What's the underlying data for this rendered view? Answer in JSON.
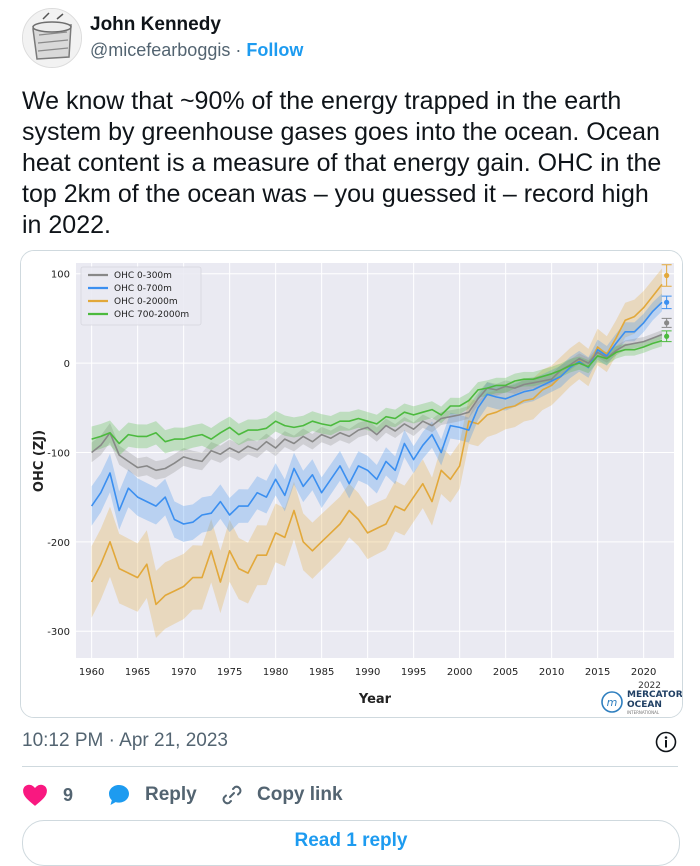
{
  "author": {
    "name": "John Kennedy",
    "handle": "@micefearboggis",
    "separator": " · ",
    "follow_label": "Follow"
  },
  "tweet": {
    "text": "We know that ~90% of the energy trapped in the earth system by greenhouse gases goes into the ocean. Ocean heat content is a measure of that energy gain. OHC in the top 2km of the ocean was – you guessed it – record high in 2022."
  },
  "footer": {
    "timestamp": "10:12 PM · Apr 21, 2023"
  },
  "actions": {
    "like_count": "9",
    "reply_label": "Reply",
    "copy_link_label": "Copy link",
    "read_reply_label": "Read 1 reply"
  },
  "colors": {
    "like": "#f91880",
    "reply": "#1d9bf0",
    "accent": "#1d9bf0",
    "plot_bg": "#eaeaf2"
  },
  "logo": {
    "year": "2022",
    "line1": "MERCATOR",
    "line2": "OCEAN",
    "line3": "INTERNATIONAL"
  },
  "chart_data": {
    "type": "line",
    "xlabel": "Year",
    "ylabel": "OHC (ZJ)",
    "xlim": [
      1958.3,
      2023.3
    ],
    "ylim": [
      -330,
      112
    ],
    "xticks": [
      1960,
      1965,
      1970,
      1975,
      1980,
      1985,
      1990,
      1995,
      2000,
      2005,
      2010,
      2015,
      2020
    ],
    "yticks": [
      100,
      0,
      -100,
      -200,
      -300
    ],
    "legend_position": "top-left",
    "grid": true,
    "x_start": 1960,
    "series": [
      {
        "name": "OHC 0-300m",
        "color": "#888888",
        "band": 11,
        "values": [
          -100,
          -92,
          -78,
          -103,
          -110,
          -117,
          -115,
          -120,
          -118,
          -112,
          -105,
          -108,
          -110,
          -98,
          -102,
          -95,
          -100,
          -93,
          -97,
          -88,
          -95,
          -85,
          -90,
          -82,
          -88,
          -80,
          -84,
          -78,
          -82,
          -75,
          -72,
          -80,
          -70,
          -76,
          -68,
          -74,
          -65,
          -70,
          -62,
          -60,
          -58,
          -55,
          -40,
          -28,
          -30,
          -26,
          -28,
          -24,
          -22,
          -20,
          -18,
          -8,
          -2,
          5,
          0,
          12,
          6,
          14,
          20,
          22,
          24,
          28,
          32
        ]
      },
      {
        "name": "OHC 0-700m",
        "color": "#3b8ff0",
        "band": 22,
        "values": [
          -160,
          -145,
          -123,
          -165,
          -140,
          -150,
          -155,
          -160,
          -150,
          -175,
          -180,
          -178,
          -170,
          -168,
          -155,
          -170,
          -160,
          -160,
          -145,
          -150,
          -130,
          -148,
          -118,
          -138,
          -125,
          -145,
          -130,
          -115,
          -135,
          -115,
          -120,
          -130,
          -110,
          -120,
          -90,
          -108,
          -92,
          -80,
          -100,
          -70,
          -72,
          -75,
          -50,
          -35,
          -38,
          -40,
          -36,
          -32,
          -30,
          -25,
          -20,
          -15,
          -5,
          2,
          -5,
          15,
          8,
          22,
          35,
          35,
          45,
          58,
          68
        ]
      },
      {
        "name": "OHC 0-2000m",
        "color": "#e2a83a",
        "band": 40,
        "values": [
          -245,
          -225,
          -200,
          -230,
          -235,
          -240,
          -225,
          -270,
          -260,
          -255,
          -250,
          -240,
          -240,
          -210,
          -245,
          -210,
          -230,
          -235,
          -215,
          -215,
          -190,
          -195,
          -165,
          -200,
          -210,
          -200,
          -190,
          -180,
          -165,
          -175,
          -190,
          -185,
          -180,
          -160,
          -165,
          -150,
          -135,
          -155,
          -120,
          -130,
          -115,
          -65,
          -68,
          -58,
          -55,
          -50,
          -48,
          -42,
          -40,
          -30,
          -25,
          -15,
          -5,
          3,
          -5,
          18,
          10,
          28,
          48,
          52,
          62,
          75,
          88
        ]
      },
      {
        "name": "OHC 700-2000m",
        "color": "#4cba3e",
        "band": 14,
        "values": [
          -85,
          -82,
          -78,
          -90,
          -80,
          -82,
          -82,
          -78,
          -88,
          -85,
          -85,
          -82,
          -80,
          -85,
          -78,
          -72,
          -80,
          -75,
          -75,
          -73,
          -65,
          -70,
          -72,
          -70,
          -65,
          -68,
          -70,
          -65,
          -65,
          -62,
          -65,
          -68,
          -60,
          -62,
          -55,
          -58,
          -55,
          -52,
          -58,
          -48,
          -48,
          -42,
          -30,
          -28,
          -25,
          -25,
          -20,
          -18,
          -18,
          -15,
          -12,
          -8,
          -3,
          0,
          -4,
          8,
          5,
          12,
          15,
          15,
          18,
          22,
          25
        ]
      }
    ],
    "markers_2022": [
      {
        "color": "#e2a83a",
        "value": 98,
        "error": 12
      },
      {
        "color": "#3b8ff0",
        "value": 68,
        "error": 7
      },
      {
        "color": "#888888",
        "value": 45,
        "error": 5
      },
      {
        "color": "#4cba3e",
        "value": 30,
        "error": 6
      }
    ]
  }
}
